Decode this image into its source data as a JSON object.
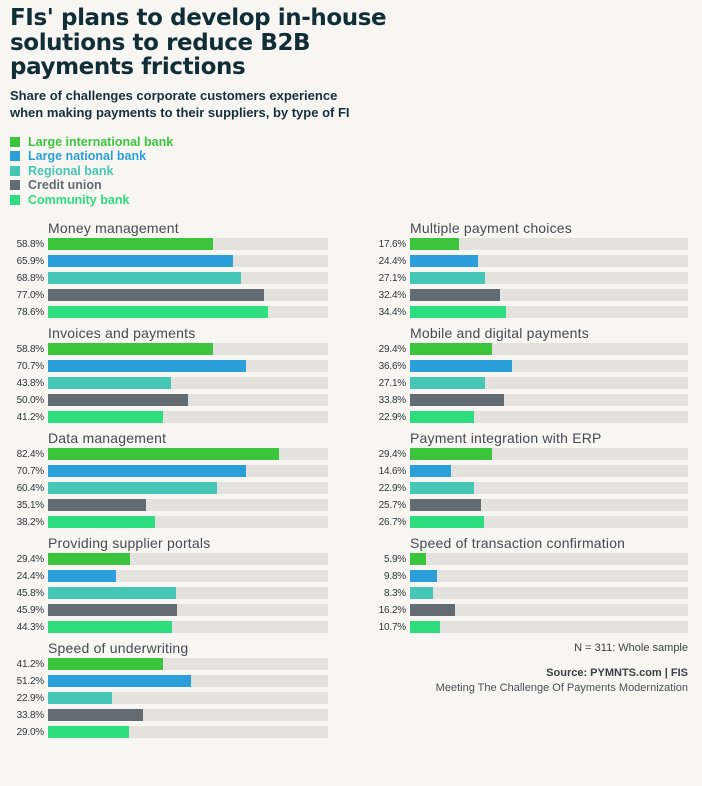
{
  "title_lines": [
    "FIs' plans to develop in-house",
    "solutions to reduce B2B",
    "payments frictions"
  ],
  "subtitle_lines": [
    "Share of challenges corporate customers experience",
    "when making payments to their suppliers, by type of FI"
  ],
  "colors": {
    "background": "#f8f6f3",
    "bar_track": "#e4e2df",
    "heading_text": "#112e38",
    "group_title_text": "#454b51",
    "value_label_text": "#2f353a"
  },
  "legend": [
    {
      "label": "Large international bank",
      "color": "#3cc53c"
    },
    {
      "label": "Large national bank",
      "color": "#2b9fd9"
    },
    {
      "label": "Regional bank",
      "color": "#46c6b4"
    },
    {
      "label": "Credit union",
      "color": "#636b73"
    },
    {
      "label": "Community bank",
      "color": "#2edd7d"
    }
  ],
  "series_colors": [
    "#3cc53c",
    "#2b9fd9",
    "#46c6b4",
    "#636b73",
    "#2edd7d"
  ],
  "chart_data": {
    "type": "bar",
    "orientation": "horizontal",
    "unit": "%",
    "xlim": [
      0,
      100
    ],
    "series_names": [
      "Large international bank",
      "Large national bank",
      "Regional bank",
      "Credit union",
      "Community bank"
    ],
    "groups": [
      {
        "title": "Money management",
        "values": [
          58.8,
          65.9,
          68.8,
          77.0,
          78.6
        ]
      },
      {
        "title": "Multiple payment choices",
        "values": [
          17.6,
          24.4,
          27.1,
          32.4,
          34.4
        ]
      },
      {
        "title": "Invoices and payments",
        "values": [
          58.8,
          70.7,
          43.8,
          50.0,
          41.2
        ]
      },
      {
        "title": "Mobile and digital payments",
        "values": [
          29.4,
          36.6,
          27.1,
          33.8,
          22.9
        ]
      },
      {
        "title": "Data management",
        "values": [
          82.4,
          70.7,
          60.4,
          35.1,
          38.2
        ]
      },
      {
        "title": "Payment integration with ERP",
        "values": [
          29.4,
          14.6,
          22.9,
          25.7,
          26.7
        ]
      },
      {
        "title": "Providing supplier portals",
        "values": [
          29.4,
          24.4,
          45.8,
          45.9,
          44.3
        ]
      },
      {
        "title": "Speed of transaction confirmation",
        "values": [
          5.9,
          9.8,
          8.3,
          16.2,
          10.7
        ]
      },
      {
        "title": "Speed of underwriting",
        "values": [
          41.2,
          51.2,
          22.9,
          33.8,
          29.0
        ]
      }
    ]
  },
  "footer": {
    "sample_note": "N = 311: Whole sample",
    "source_line": "Source: PYMNTS.com  |  FIS",
    "tagline": "Meeting The Challenge Of Payments Modernization"
  }
}
